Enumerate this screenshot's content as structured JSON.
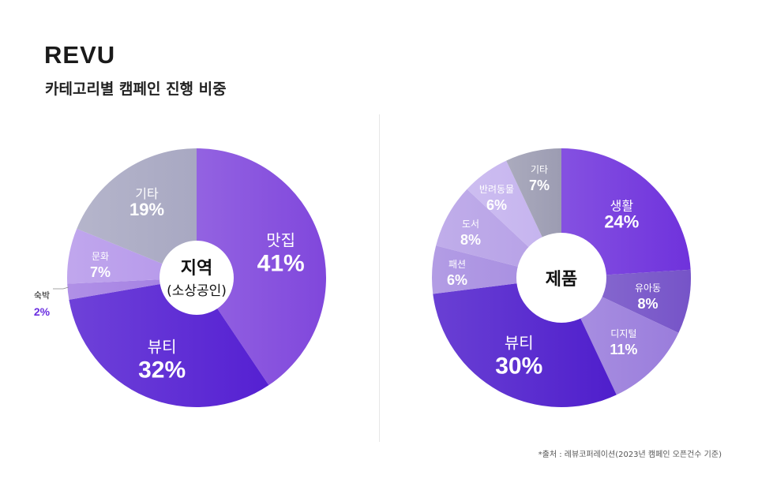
{
  "header": {
    "logo": "REVU",
    "subtitle": "카테고리별 캠페인 진행 비중"
  },
  "source_note": "*출처 : 레뷰코퍼레이션(2023년 캠페인 오픈건수 기준)",
  "chart_data": [
    {
      "type": "pie",
      "style": "donut",
      "center_title": "지역",
      "center_subtitle": "(소상공인)",
      "unit": "%",
      "slices": [
        {
          "label": "맛집",
          "value": 41,
          "color": "#8047dc"
        },
        {
          "label": "뷰티",
          "value": 32,
          "color": "#5520d2"
        },
        {
          "label": "숙박",
          "value": 2,
          "color": "#a27de2"
        },
        {
          "label": "문화",
          "value": 7,
          "color": "#b597ea"
        },
        {
          "label": "기타",
          "value": 19,
          "color": "#a8a8c2"
        }
      ]
    },
    {
      "type": "pie",
      "style": "donut",
      "center_title": "제품",
      "unit": "%",
      "slices": [
        {
          "label": "생활",
          "value": 24,
          "color": "#6f32dc"
        },
        {
          "label": "유아동",
          "value": 8,
          "color": "#7654c8"
        },
        {
          "label": "디지털",
          "value": 11,
          "color": "#9a7ddc"
        },
        {
          "label": "뷰티",
          "value": 30,
          "color": "#4f1ecc"
        },
        {
          "label": "패션",
          "value": 6,
          "color": "#a58be0"
        },
        {
          "label": "도서",
          "value": 8,
          "color": "#b59fe6"
        },
        {
          "label": "반려동물",
          "value": 6,
          "color": "#c4b2ee"
        },
        {
          "label": "기타",
          "value": 7,
          "color": "#9c9cb2"
        }
      ]
    }
  ]
}
